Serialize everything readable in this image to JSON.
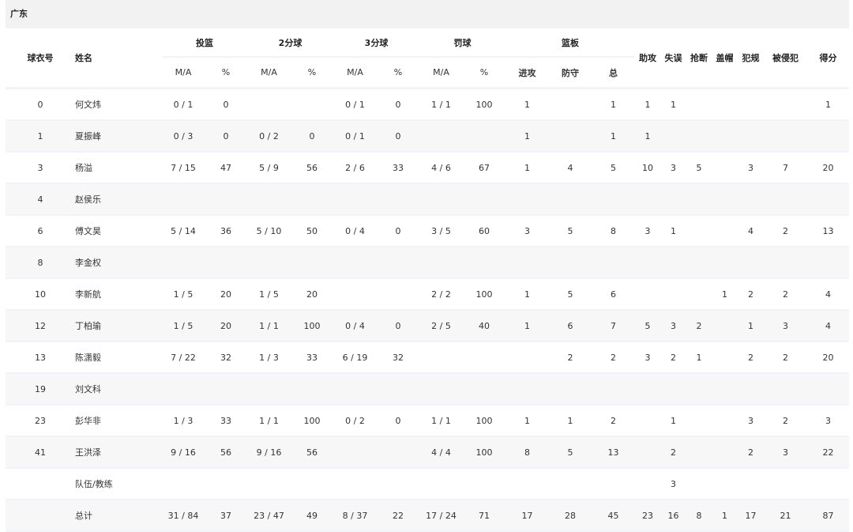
{
  "team": "广东",
  "headers": {
    "number": "球衣号",
    "name": "姓名",
    "fg": "投篮",
    "two": "2分球",
    "three": "3分球",
    "ft": "罚球",
    "reb": "篮板",
    "ma": "M/A",
    "pct": "%",
    "oreb": "进攻",
    "dreb": "防守",
    "treb": "总",
    "ast": "助攻",
    "to": "失误",
    "stl": "抢断",
    "blk": "盖帽",
    "pf": "犯规",
    "fd": "被侵犯",
    "pts": "得分"
  },
  "rows": [
    [
      "0",
      "何文炜",
      "0 / 1",
      "0",
      "",
      "",
      "0 / 1",
      "0",
      "1 / 1",
      "100",
      "1",
      "",
      "1",
      "1",
      "1",
      "",
      "",
      "",
      "",
      "1"
    ],
    [
      "1",
      "夏振峰",
      "0 / 3",
      "0",
      "0 / 2",
      "0",
      "0 / 1",
      "0",
      "",
      "",
      "1",
      "",
      "1",
      "1",
      "",
      "",
      "",
      "",
      "",
      ""
    ],
    [
      "3",
      "杨溢",
      "7 / 15",
      "47",
      "5 / 9",
      "56",
      "2 / 6",
      "33",
      "4 / 6",
      "67",
      "1",
      "4",
      "5",
      "10",
      "3",
      "5",
      "",
      "3",
      "7",
      "20"
    ],
    [
      "4",
      "赵侯乐",
      "",
      "",
      "",
      "",
      "",
      "",
      "",
      "",
      "",
      "",
      "",
      "",
      "",
      "",
      "",
      "",
      "",
      ""
    ],
    [
      "6",
      "傅文昊",
      "5 / 14",
      "36",
      "5 / 10",
      "50",
      "0 / 4",
      "0",
      "3 / 5",
      "60",
      "3",
      "5",
      "8",
      "3",
      "1",
      "",
      "",
      "4",
      "2",
      "13"
    ],
    [
      "8",
      "李金权",
      "",
      "",
      "",
      "",
      "",
      "",
      "",
      "",
      "",
      "",
      "",
      "",
      "",
      "",
      "",
      "",
      "",
      ""
    ],
    [
      "10",
      "李新航",
      "1 / 5",
      "20",
      "1 / 5",
      "20",
      "",
      "",
      "2 / 2",
      "100",
      "1",
      "5",
      "6",
      "",
      "",
      "",
      "1",
      "2",
      "2",
      "4"
    ],
    [
      "12",
      "丁柏瑜",
      "1 / 5",
      "20",
      "1 / 1",
      "100",
      "0 / 4",
      "0",
      "2 / 5",
      "40",
      "1",
      "6",
      "7",
      "5",
      "3",
      "2",
      "",
      "1",
      "3",
      "4"
    ],
    [
      "13",
      "陈潇毅",
      "7 / 22",
      "32",
      "1 / 3",
      "33",
      "6 / 19",
      "32",
      "",
      "",
      "",
      "2",
      "2",
      "3",
      "2",
      "1",
      "",
      "2",
      "2",
      "20"
    ],
    [
      "19",
      "刘文科",
      "",
      "",
      "",
      "",
      "",
      "",
      "",
      "",
      "",
      "",
      "",
      "",
      "",
      "",
      "",
      "",
      "",
      ""
    ],
    [
      "23",
      "彭华非",
      "1 / 3",
      "33",
      "1 / 1",
      "100",
      "0 / 2",
      "0",
      "1 / 1",
      "100",
      "1",
      "1",
      "2",
      "",
      "1",
      "",
      "",
      "3",
      "2",
      "3"
    ],
    [
      "41",
      "王洪泽",
      "9 / 16",
      "56",
      "9 / 16",
      "56",
      "",
      "",
      "4 / 4",
      "100",
      "8",
      "5",
      "13",
      "",
      "2",
      "",
      "",
      "2",
      "3",
      "22"
    ],
    [
      "",
      "队伍/教练",
      "",
      "",
      "",
      "",
      "",
      "",
      "",
      "",
      "",
      "",
      "",
      "",
      "3",
      "",
      "",
      "",
      "",
      ""
    ],
    [
      "",
      "总计",
      "31 / 84",
      "37",
      "23 / 47",
      "49",
      "8 / 37",
      "22",
      "17 / 24",
      "71",
      "17",
      "28",
      "45",
      "23",
      "16",
      "8",
      "1",
      "17",
      "21",
      "87"
    ]
  ]
}
